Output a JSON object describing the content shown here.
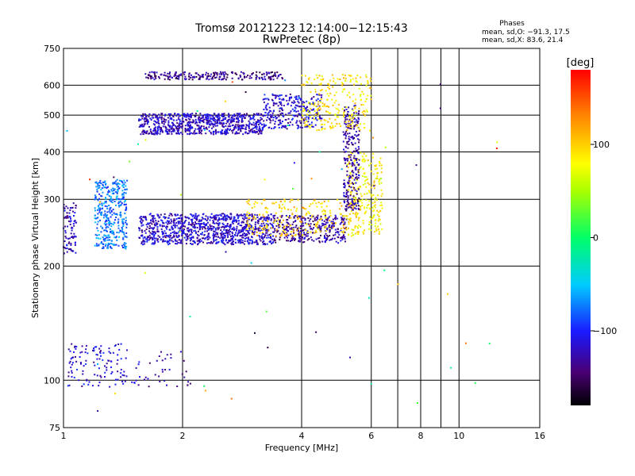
{
  "chart_data": {
    "type": "scatter",
    "title": "Tromsø 20121223 12:14:00−12:15:43",
    "subtitle": "RwPretec (8p)",
    "xlabel": "Frequency [MHz]",
    "ylabel": "Stationary phase Virtual Height [km]",
    "x_scale": "log",
    "y_scale": "log",
    "xlim": [
      1,
      16
    ],
    "ylim": [
      75,
      750
    ],
    "x_ticks": [
      1,
      2,
      4,
      6,
      8,
      10,
      16
    ],
    "x_tick_labels": [
      "1",
      "2",
      "4",
      "6",
      "8",
      "10",
      "16"
    ],
    "x_minor_gridlines": [
      7,
      9
    ],
    "y_ticks": [
      75,
      100,
      200,
      300,
      400,
      500,
      600,
      750
    ],
    "y_tick_labels": [
      "75",
      "100",
      "200",
      "300",
      "400",
      "500",
      "600",
      "750"
    ],
    "grid": true,
    "colorbar": {
      "title": "[deg]",
      "min": -180,
      "max": 180,
      "ticks": [
        100,
        0,
        -100
      ],
      "tick_labels": [
        "100",
        "0",
        "−100"
      ],
      "colormap": "rainbow"
    },
    "stats": {
      "heading": "Phases",
      "line_o": "mean, sd,O: −91.3, 17.5",
      "line_x": "mean, sd,X:  83.6, 21.4"
    },
    "traces": [
      {
        "f_start": 1.0,
        "f_end": 1.08,
        "h_min": 215,
        "h_max": 295,
        "phase": -120,
        "count": 90
      },
      {
        "f_start": 1.2,
        "f_end": 1.45,
        "h_min": 222,
        "h_max": 338,
        "phase": -75,
        "count": 380
      },
      {
        "f_start": 1.55,
        "f_end": 3.4,
        "h_min": 228,
        "h_max": 275,
        "phase": -118,
        "count": 1000
      },
      {
        "f_start": 3.4,
        "f_end": 5.2,
        "h_min": 230,
        "h_max": 272,
        "phase": -130,
        "count": 340
      },
      {
        "f_start": 2.9,
        "f_end": 5.6,
        "h_min": 240,
        "h_max": 300,
        "phase": 100,
        "count": 240
      },
      {
        "f_start": 5.2,
        "f_end": 6.4,
        "h_min": 240,
        "h_max": 400,
        "phase": 85,
        "count": 240
      },
      {
        "f_start": 5.1,
        "f_end": 5.6,
        "h_min": 280,
        "h_max": 530,
        "phase": -130,
        "count": 260
      },
      {
        "f_start": 1.55,
        "f_end": 3.2,
        "h_min": 445,
        "h_max": 505,
        "phase": -120,
        "count": 760
      },
      {
        "f_start": 3.2,
        "f_end": 4.5,
        "h_min": 460,
        "h_max": 570,
        "phase": -115,
        "count": 280
      },
      {
        "f_start": 4.0,
        "f_end": 6.0,
        "h_min": 455,
        "h_max": 640,
        "phase": 90,
        "count": 240
      },
      {
        "f_start": 1.6,
        "f_end": 3.6,
        "h_min": 620,
        "h_max": 650,
        "phase": -140,
        "count": 220
      },
      {
        "f_start": 1.02,
        "f_end": 1.45,
        "h_min": 96,
        "h_max": 125,
        "phase": -115,
        "count": 120
      },
      {
        "f_start": 1.45,
        "f_end": 2.1,
        "h_min": 95,
        "h_max": 120,
        "phase": -125,
        "count": 40
      },
      {
        "f_start": 1.0,
        "f_end": 13.0,
        "h_min": 80,
        "h_max": 700,
        "phase": 0,
        "count": 60
      }
    ]
  }
}
